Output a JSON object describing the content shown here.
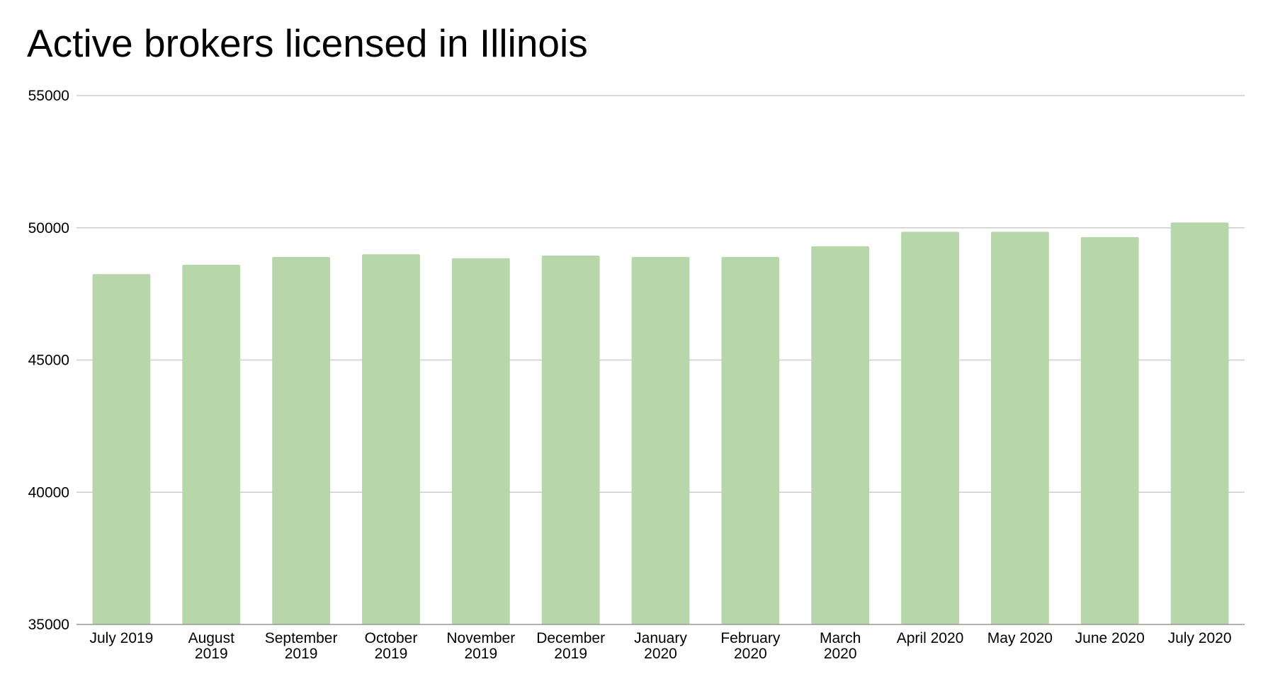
{
  "chart_data": {
    "type": "bar",
    "title": "Active brokers licensed in Illinois",
    "xlabel": "",
    "ylabel": "",
    "categories": [
      "July 2019",
      "August 2019",
      "September 2019",
      "October 2019",
      "November 2019",
      "December 2019",
      "January 2020",
      "February 2020",
      "March 2020",
      "April 2020",
      "May 2020",
      "June 2020",
      "July 2020"
    ],
    "category_lines": [
      [
        "July 2019"
      ],
      [
        "August",
        "2019"
      ],
      [
        "September",
        "2019"
      ],
      [
        "October",
        "2019"
      ],
      [
        "November",
        "2019"
      ],
      [
        "December",
        "2019"
      ],
      [
        "January",
        "2020"
      ],
      [
        "February",
        "2020"
      ],
      [
        "March",
        "2020"
      ],
      [
        "April 2020"
      ],
      [
        "May 2020"
      ],
      [
        "June 2020"
      ],
      [
        "July 2020"
      ]
    ],
    "values": [
      48250,
      48600,
      48900,
      49000,
      48850,
      48950,
      48900,
      48900,
      49300,
      49850,
      49850,
      49650,
      50200
    ],
    "ylim": [
      35000,
      55000
    ],
    "yticks": [
      "35000",
      "40000",
      "45000",
      "50000",
      "55000"
    ],
    "grid": true,
    "legend": "none",
    "colors": {
      "bar": "#b7d7aa",
      "grid": "#cccccc",
      "axis": "#999999"
    }
  }
}
